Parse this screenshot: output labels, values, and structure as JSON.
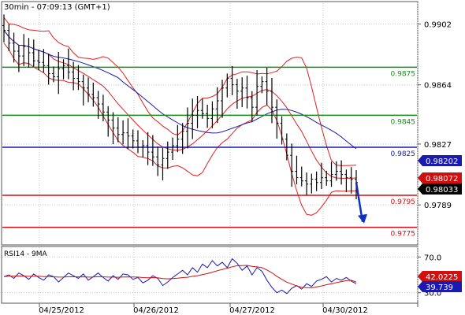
{
  "header": {
    "timeframe": "30min",
    "clock": "07:09:13 (GMT+1)"
  },
  "chart_data": [
    {
      "type": "candlestick",
      "timeframe": "30min",
      "time_label": "07:09:13 (GMT+1)",
      "ylim": [
        0.9765,
        0.9915
      ],
      "y_ticks": [
        "0.9902",
        "0.9864",
        "0.9827",
        "0.9789"
      ],
      "x_ticks": [
        "04/25/2012",
        "04/26/2012",
        "04/27/2012",
        "04/30/2012"
      ],
      "grid": true,
      "colors": {
        "price": "#000000",
        "bollinger": "#e02020",
        "moving_average": "#1a1ab0",
        "support_resistance": "#1a8a1a",
        "pivot": "#1a1ab0",
        "support": "#d01010",
        "forecast_arrow": "#1030c0"
      },
      "levels": [
        {
          "value": 0.9875,
          "label": "0.9875",
          "color": "#1a8a1a"
        },
        {
          "value": 0.9845,
          "label": "0.9845",
          "color": "#1a8a1a"
        },
        {
          "value": 0.9825,
          "label": "0.9825",
          "color": "#1a1ab0"
        },
        {
          "value": 0.9795,
          "label": "0.9795",
          "color": "#d01010"
        },
        {
          "value": 0.9775,
          "label": "0.9775",
          "color": "#d01010"
        }
      ],
      "price_tags": [
        {
          "label": "0.98202",
          "color": "#1a1ab0"
        },
        {
          "label": "0.98072",
          "color": "#d01010"
        },
        {
          "label": "0.98033",
          "color": "#000000"
        }
      ],
      "close_values": [
        0.9898,
        0.989,
        0.9885,
        0.9882,
        0.9888,
        0.9884,
        0.9879,
        0.9878,
        0.9876,
        0.9871,
        0.9869,
        0.9874,
        0.9876,
        0.9872,
        0.9868,
        0.9866,
        0.9862,
        0.9858,
        0.9856,
        0.9852,
        0.9847,
        0.9842,
        0.9837,
        0.9833,
        0.9834,
        0.9832,
        0.9829,
        0.9825,
        0.9826,
        0.9822,
        0.9819,
        0.9814,
        0.9818,
        0.9822,
        0.9826,
        0.983,
        0.9835,
        0.984,
        0.9845,
        0.9848,
        0.9846,
        0.9843,
        0.9849,
        0.9854,
        0.9862,
        0.9868,
        0.9864,
        0.986,
        0.9862,
        0.9856,
        0.985,
        0.9863,
        0.9866,
        0.986,
        0.985,
        0.984,
        0.983,
        0.982,
        0.981,
        0.9806,
        0.9804,
        0.9802,
        0.9805,
        0.9803,
        0.9806,
        0.9804,
        0.9808,
        0.981,
        0.9808,
        0.9806,
        0.9805,
        0.9803
      ]
    },
    {
      "type": "line",
      "title": "RSI14 - 9MA",
      "ylim": [
        20,
        80
      ],
      "y_ticks": [
        "70.0",
        "30.0"
      ],
      "grid": true,
      "values_tags": [
        {
          "label": "42.0225",
          "color": "#d01010"
        },
        {
          "label": "39.739",
          "color": "#1a1ab0"
        }
      ],
      "series": [
        {
          "name": "RSI14",
          "color": "#1a1ab0",
          "values": [
            48,
            50,
            46,
            52,
            49,
            45,
            51,
            47,
            44,
            50,
            48,
            42,
            47,
            52,
            49,
            46,
            51,
            44,
            48,
            52,
            47,
            43,
            49,
            45,
            51,
            50,
            45,
            47,
            41,
            44,
            49,
            46,
            38,
            42,
            47,
            51,
            55,
            50,
            58,
            53,
            62,
            58,
            66,
            60,
            64,
            58,
            68,
            63,
            55,
            60,
            50,
            58,
            54,
            44,
            36,
            30,
            33,
            29,
            35,
            38,
            34,
            40,
            37,
            43,
            45,
            48,
            42,
            46,
            44,
            47,
            43,
            40
          ]
        },
        {
          "name": "9MA",
          "color": "#d01010",
          "values": [
            48,
            48.5,
            48.6,
            48.8,
            48.6,
            48.3,
            48.5,
            48.4,
            48.1,
            48.0,
            47.8,
            47.4,
            47.5,
            47.8,
            47.9,
            47.7,
            47.8,
            47.4,
            47.5,
            47.9,
            47.8,
            47.4,
            47.5,
            47.3,
            47.5,
            47.7,
            47.5,
            47.4,
            46.9,
            46.7,
            46.9,
            46.7,
            45.8,
            45.5,
            45.8,
            46.2,
            46.9,
            47.3,
            48.3,
            49.0,
            50.3,
            51.4,
            53.0,
            54.6,
            56.1,
            57.4,
            59.0,
            60.2,
            60.4,
            60.6,
            59.5,
            58.9,
            58.0,
            55.5,
            52.3,
            48.3,
            45.0,
            41.8,
            39.7,
            37.6,
            36.0,
            35.6,
            35.4,
            36.4,
            37.6,
            39.0,
            39.9,
            41.3,
            42.4,
            43.5,
            43.9,
            42.0
          ]
        }
      ]
    }
  ]
}
